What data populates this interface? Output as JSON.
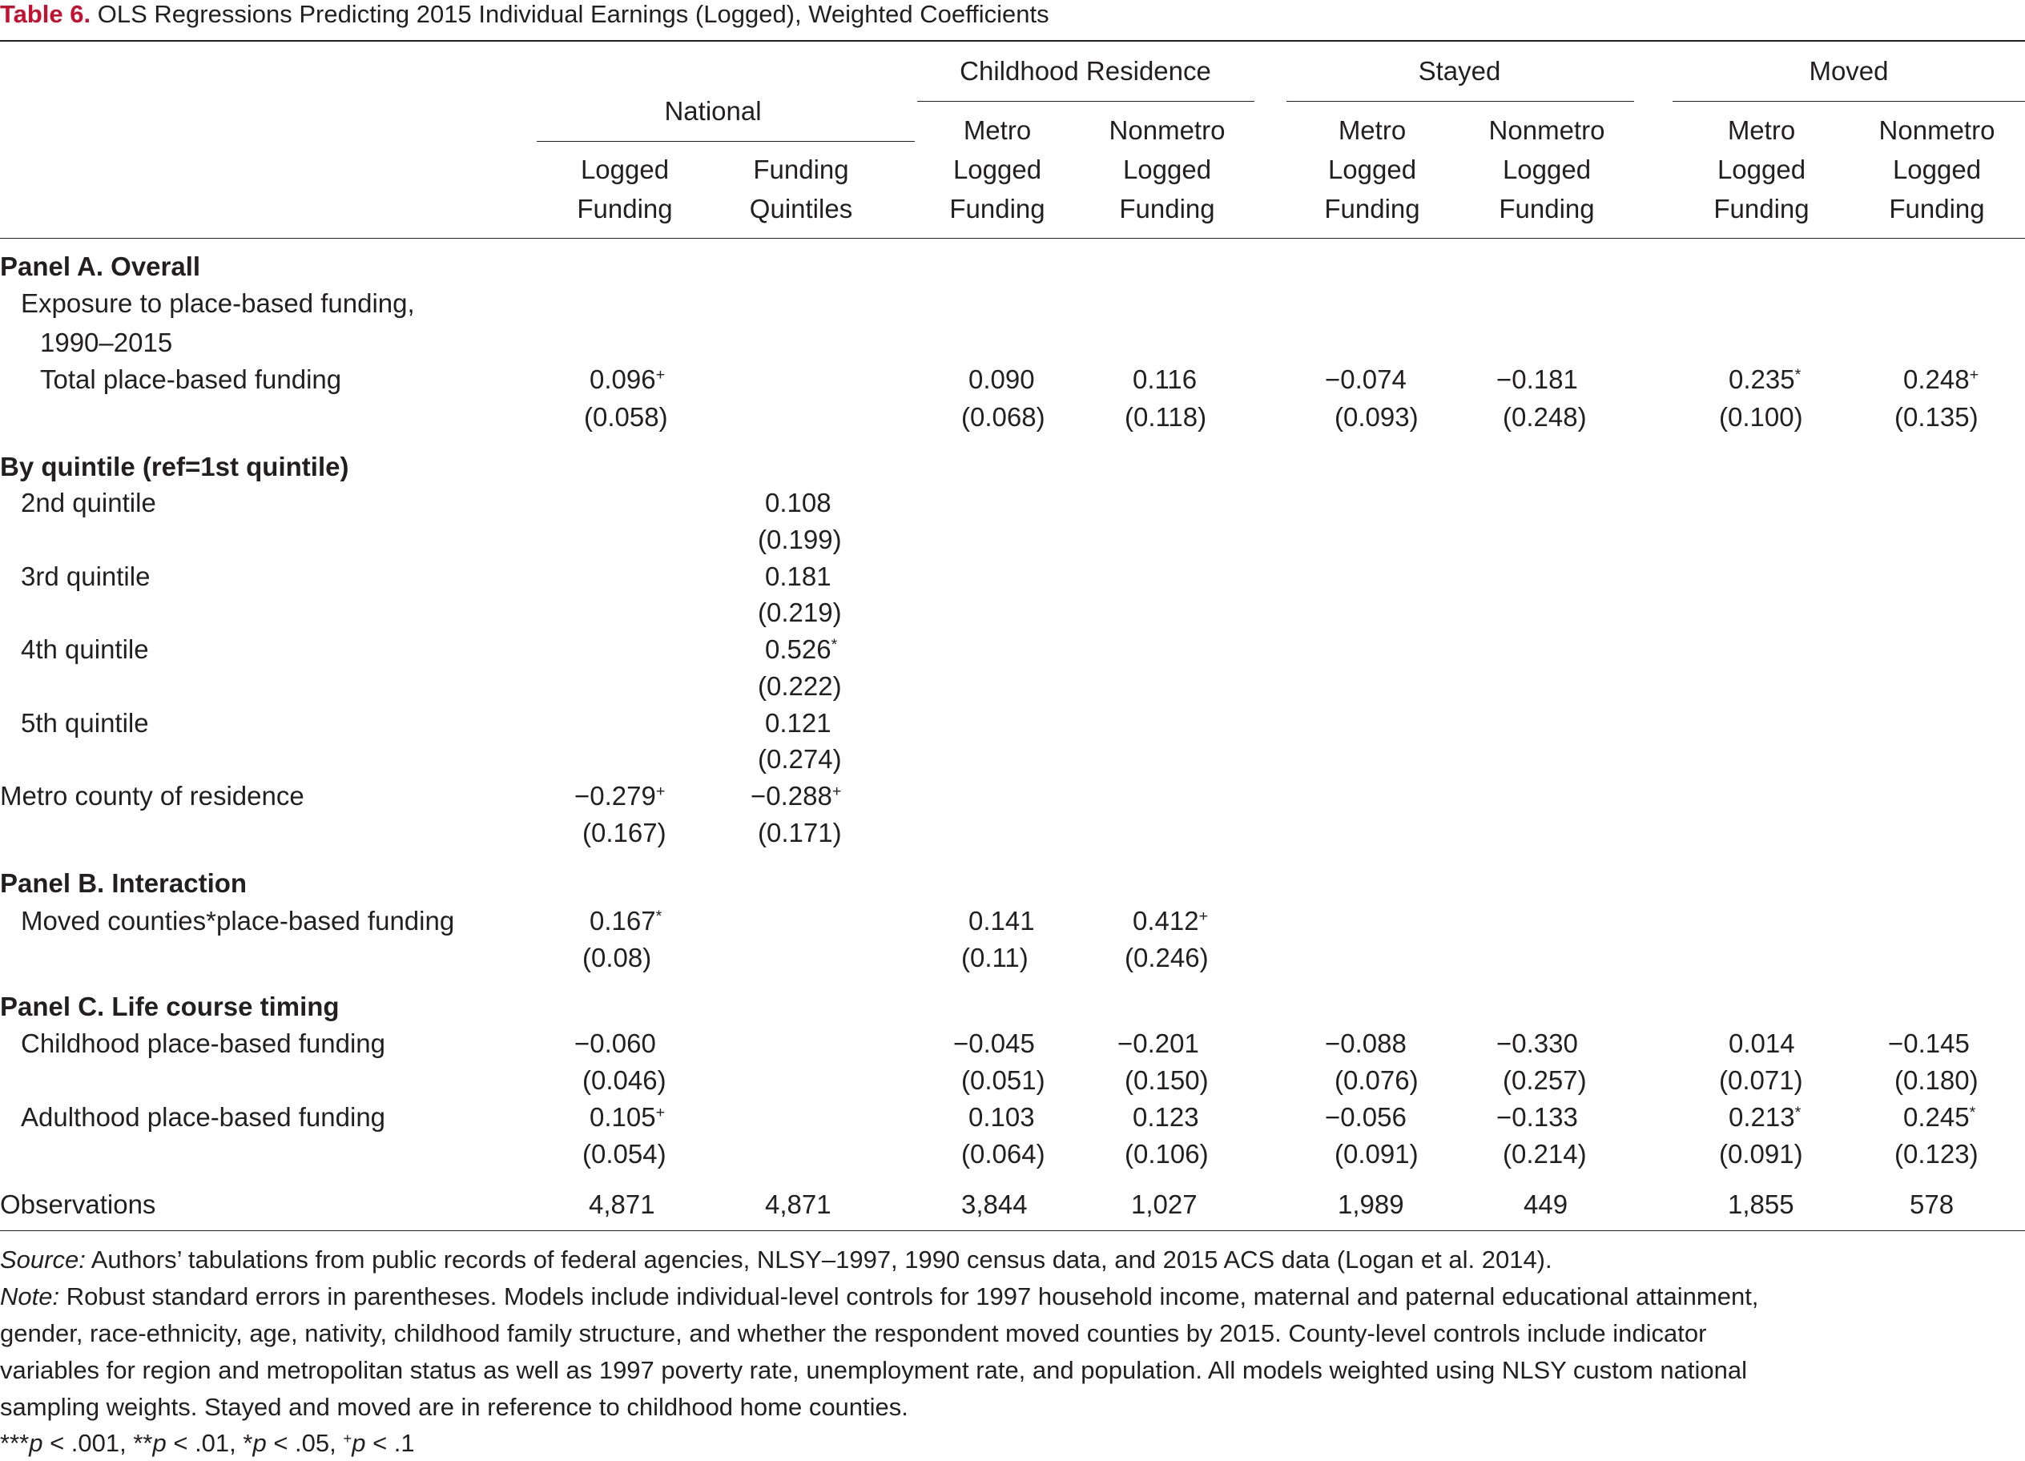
{
  "title": {
    "number": "Table 6.",
    "text": "OLS Regressions Predicting 2015 Individual Earnings (Logged), Weighted Coefficients"
  },
  "headers": {
    "national": "National",
    "childhood": "Childhood Residence",
    "stayed": "Stayed",
    "moved": "Moved",
    "cols": [
      [
        "Logged",
        "Funding"
      ],
      [
        "Funding",
        "Quintiles"
      ],
      [
        "Metro",
        "Logged",
        "Funding"
      ],
      [
        "Nonmetro",
        "Logged",
        "Funding"
      ],
      [
        "Metro",
        "Logged",
        "Funding"
      ],
      [
        "Nonmetro",
        "Logged",
        "Funding"
      ],
      [
        "Metro",
        "Logged",
        "Funding"
      ],
      [
        "Nonmetro",
        "Logged",
        "Funding"
      ]
    ]
  },
  "rows": {
    "panel_a": "Panel A. Overall",
    "exposure_1": "Exposure to place-based funding,",
    "exposure_2": "1990–2015",
    "total": "Total place-based funding",
    "by_quintile": "By quintile (ref=1st quintile)",
    "q2": "2nd quintile",
    "q3": "3rd quintile",
    "q4": "4th quintile",
    "q5": "5th quintile",
    "metro": "Metro county of residence",
    "panel_b": "Panel B. Interaction",
    "moved_int": "Moved counties*place-based funding",
    "panel_c": "Panel C. Life course timing",
    "childhood": "Childhood place-based funding",
    "adulthood": "Adulthood place-based funding",
    "observations": "Observations"
  },
  "values": {
    "total": [
      [
        "0.096",
        "+"
      ],
      [
        "",
        ""
      ],
      [
        "0.090",
        ""
      ],
      [
        "0.116",
        ""
      ],
      [
        "−0.074",
        ""
      ],
      [
        "−0.181",
        ""
      ],
      [
        "0.235",
        "*"
      ],
      [
        "0.248",
        "+"
      ]
    ],
    "total_se": [
      "(0.058)",
      "",
      "(0.068)",
      "(0.118)",
      "(0.093)",
      "(0.248)",
      "(0.100)",
      "(0.135)"
    ],
    "q2": [
      "0.108",
      ""
    ],
    "q2_se": "(0.199)",
    "q3": [
      "0.181",
      ""
    ],
    "q3_se": "(0.219)",
    "q4": [
      "0.526",
      "*"
    ],
    "q4_se": "(0.222)",
    "q5": [
      "0.121",
      ""
    ],
    "q5_se": "(0.274)",
    "metro": [
      [
        "−0.279",
        "+"
      ],
      [
        "−0.288",
        "+"
      ]
    ],
    "metro_se": [
      "(0.167)",
      "(0.171)"
    ],
    "moved_int": [
      [
        "0.167",
        "*"
      ],
      [
        "0.141",
        ""
      ],
      [
        "0.412",
        "+"
      ]
    ],
    "moved_int_se": [
      "(0.08)",
      "(0.11)",
      "(0.246)"
    ],
    "childhood": [
      "−0.060",
      "−0.045",
      "−0.201",
      "−0.088",
      "−0.330",
      "0.014",
      "−0.145"
    ],
    "childhood_se": [
      "(0.046)",
      "(0.051)",
      "(0.150)",
      "(0.076)",
      "(0.257)",
      "(0.071)",
      "(0.180)"
    ],
    "adulthood": [
      [
        "0.105",
        "+"
      ],
      [
        "0.103",
        ""
      ],
      [
        "0.123",
        ""
      ],
      [
        "−0.056",
        ""
      ],
      [
        "−0.133",
        ""
      ],
      [
        "0.213",
        "*"
      ],
      [
        "0.245",
        "*"
      ]
    ],
    "adulthood_se": [
      "(0.054)",
      "(0.064)",
      "(0.106)",
      "(0.091)",
      "(0.214)",
      "(0.091)",
      "(0.123)"
    ],
    "observations": [
      "4,871",
      "4,871",
      "3,844",
      "1,027",
      "1,989",
      "449",
      "1,855",
      "578"
    ]
  },
  "footer": {
    "source_label": "Source:",
    "source_text": " Authors’ tabulations from public records of federal agencies, NLSY–1997, 1990 census data, and 2015 ACS data (Logan et al. 2014).",
    "note_label": "Note:",
    "note_line1": " Robust standard errors in parentheses. Models include individual-level controls for 1997 household income, maternal and paternal educational attainment,",
    "note_line2": "gender, race-ethnicity, age, nativity, childhood family structure, and whether the respondent moved counties by 2015. County-level controls include indicator",
    "note_line3": "variables for region and metropolitan status as well as 1997 poverty rate, unemployment rate, and population. All models weighted using NLSY custom national",
    "note_line4": "sampling weights. Stayed and moved are in reference to childhood home counties.",
    "sig": [
      "***",
      "p",
      " < .001, **",
      "p",
      " < .01, *",
      "p",
      " < .05, ",
      "+",
      "p",
      " < .1"
    ]
  }
}
